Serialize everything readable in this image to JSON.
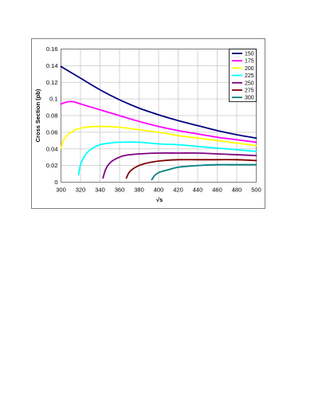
{
  "chart_data": {
    "type": "line",
    "title": "",
    "xlabel": "√s",
    "ylabel": "Cross Section (pb)",
    "xlim": [
      300,
      500
    ],
    "ylim": [
      0,
      0.16
    ],
    "x_ticks": [
      "300",
      "320",
      "340",
      "360",
      "380",
      "400",
      "420",
      "440",
      "460",
      "480",
      "500"
    ],
    "y_ticks": [
      "0",
      "0.02",
      "0.04",
      "0.06",
      "0.08",
      "0.1",
      "0.12",
      "0.14",
      "0.16"
    ],
    "grid": true,
    "legend_position": "top-right",
    "series": [
      {
        "name": "150",
        "color": "#000080",
        "points": [
          [
            300,
            0.139
          ],
          [
            320,
            0.125
          ],
          [
            340,
            0.111
          ],
          [
            360,
            0.099
          ],
          [
            380,
            0.089
          ],
          [
            400,
            0.081
          ],
          [
            420,
            0.074
          ],
          [
            440,
            0.068
          ],
          [
            460,
            0.062
          ],
          [
            480,
            0.057
          ],
          [
            500,
            0.053
          ]
        ]
      },
      {
        "name": "175",
        "color": "#ff00ff",
        "points": [
          [
            300,
            0.094
          ],
          [
            305,
            0.096
          ],
          [
            310,
            0.097
          ],
          [
            315,
            0.096
          ],
          [
            320,
            0.094
          ],
          [
            340,
            0.087
          ],
          [
            360,
            0.08
          ],
          [
            380,
            0.073
          ],
          [
            400,
            0.067
          ],
          [
            420,
            0.062
          ],
          [
            440,
            0.058
          ],
          [
            460,
            0.054
          ],
          [
            480,
            0.051
          ],
          [
            500,
            0.048
          ]
        ]
      },
      {
        "name": "200",
        "color": "#ffff00",
        "points": [
          [
            300,
            0.041
          ],
          [
            303,
            0.051
          ],
          [
            308,
            0.058
          ],
          [
            315,
            0.063
          ],
          [
            325,
            0.066
          ],
          [
            340,
            0.067
          ],
          [
            360,
            0.066
          ],
          [
            380,
            0.063
          ],
          [
            400,
            0.06
          ],
          [
            420,
            0.056
          ],
          [
            440,
            0.053
          ],
          [
            460,
            0.05
          ],
          [
            480,
            0.047
          ],
          [
            500,
            0.044
          ]
        ]
      },
      {
        "name": "225",
        "color": "#00ffff",
        "points": [
          [
            318,
            0.009
          ],
          [
            320,
            0.021
          ],
          [
            324,
            0.031
          ],
          [
            330,
            0.039
          ],
          [
            340,
            0.045
          ],
          [
            350,
            0.047
          ],
          [
            360,
            0.048
          ],
          [
            380,
            0.048
          ],
          [
            400,
            0.046
          ],
          [
            420,
            0.045
          ],
          [
            440,
            0.043
          ],
          [
            460,
            0.041
          ],
          [
            480,
            0.039
          ],
          [
            500,
            0.037
          ]
        ]
      },
      {
        "name": "250",
        "color": "#800080",
        "points": [
          [
            343,
            0.005
          ],
          [
            346,
            0.016
          ],
          [
            350,
            0.023
          ],
          [
            356,
            0.028
          ],
          [
            365,
            0.032
          ],
          [
            380,
            0.034
          ],
          [
            400,
            0.035
          ],
          [
            420,
            0.035
          ],
          [
            440,
            0.035
          ],
          [
            460,
            0.034
          ],
          [
            480,
            0.033
          ],
          [
            500,
            0.032
          ]
        ]
      },
      {
        "name": "275",
        "color": "#800000",
        "points": [
          [
            367,
            0.005
          ],
          [
            370,
            0.012
          ],
          [
            375,
            0.017
          ],
          [
            382,
            0.021
          ],
          [
            392,
            0.024
          ],
          [
            405,
            0.026
          ],
          [
            420,
            0.027
          ],
          [
            440,
            0.027
          ],
          [
            460,
            0.027
          ],
          [
            480,
            0.027
          ],
          [
            500,
            0.026
          ]
        ]
      },
      {
        "name": "300",
        "color": "#008080",
        "points": [
          [
            393,
            0.003
          ],
          [
            396,
            0.008
          ],
          [
            401,
            0.012
          ],
          [
            410,
            0.015
          ],
          [
            420,
            0.018
          ],
          [
            440,
            0.02
          ],
          [
            460,
            0.021
          ],
          [
            480,
            0.021
          ],
          [
            500,
            0.021
          ]
        ]
      }
    ]
  }
}
